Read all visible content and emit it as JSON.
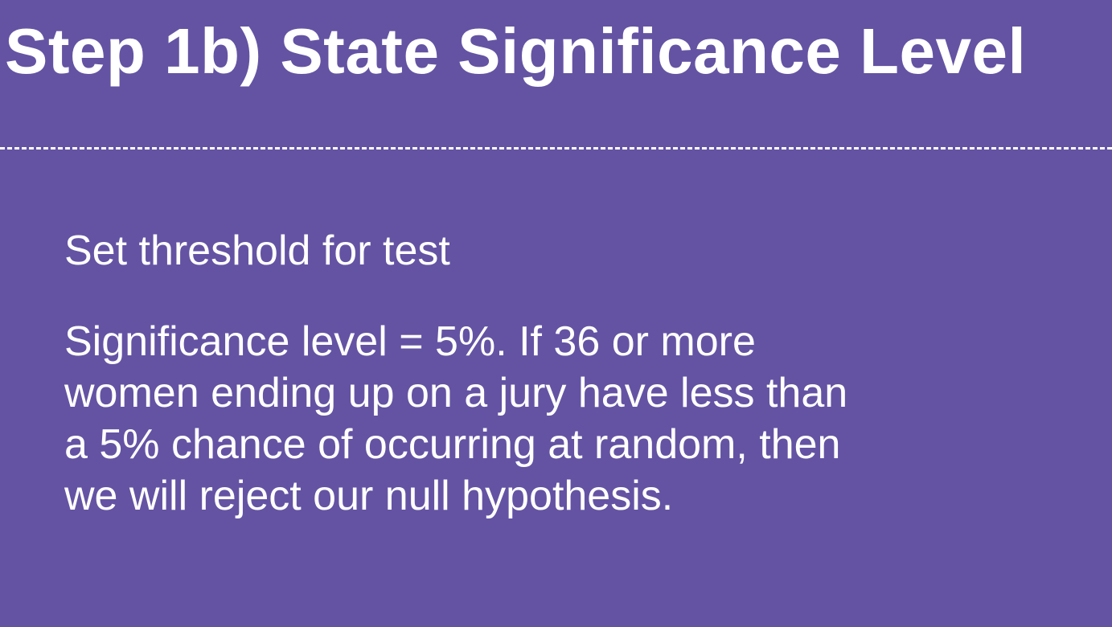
{
  "slide": {
    "title": "Step 1b) State Significance Level",
    "subtitle": "Set threshold for test",
    "paragraph_lines": [
      "Significance level = 5%. If 36 or more",
      "women ending up on a jury have less than",
      "a 5% chance of occurring at random, then",
      "we will reject our null hypothesis."
    ]
  },
  "colors": {
    "background": "#6453a3",
    "text": "#ffffff"
  }
}
